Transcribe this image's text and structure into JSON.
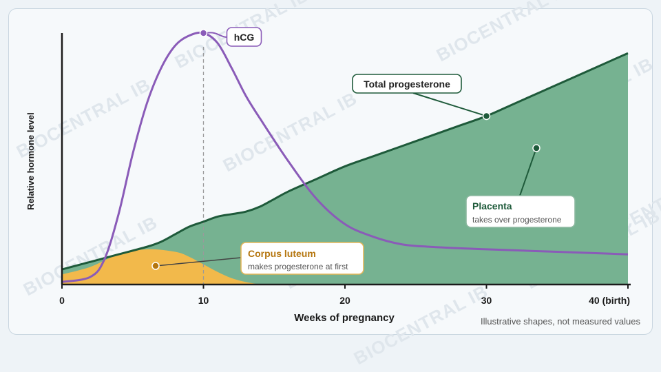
{
  "watermark": "BIOCENTRAL IB",
  "note": "Illustrative shapes, not measured values",
  "colors": {
    "placenta": "#76b291",
    "total_line": "#1e5a3a",
    "corpus": "#f2b94b",
    "corpus_text": "#b5760f",
    "hcg": "#8a5bb8",
    "placenta_text": "#1e5a3a"
  },
  "chart_data": {
    "type": "area",
    "xlabel": "Weeks of pregnancy",
    "ylabel": "Relative hormone level",
    "xlim": [
      0,
      40
    ],
    "ylim": [
      0,
      100
    ],
    "x_ticks": [
      {
        "value": 0,
        "label": "0"
      },
      {
        "value": 10,
        "label": "10"
      },
      {
        "value": 20,
        "label": "20"
      },
      {
        "value": 30,
        "label": "30"
      },
      {
        "value": 40,
        "label": "40 (birth)"
      }
    ],
    "grid": false,
    "reference_line_x": 10,
    "series": [
      {
        "name": "Total progesterone",
        "kind": "area",
        "x": [
          0,
          2,
          4,
          6,
          7,
          8,
          9,
          10,
          11,
          12,
          13,
          14,
          15,
          16,
          18,
          20,
          22,
          24,
          26,
          28,
          30,
          32,
          34,
          36,
          38,
          40
        ],
        "y": [
          6,
          9,
          12,
          15,
          17,
          20,
          23,
          25,
          27,
          28,
          29,
          31,
          34,
          37,
          42,
          47,
          51,
          55,
          59,
          63,
          67,
          72,
          77,
          82,
          87,
          92
        ]
      },
      {
        "name": "Corpus luteum",
        "kind": "area",
        "x": [
          0,
          2,
          4,
          6,
          8,
          9,
          10,
          11,
          12,
          13,
          14
        ],
        "y": [
          4,
          7,
          12,
          14,
          13,
          11,
          8,
          5,
          2.5,
          1,
          0
        ]
      },
      {
        "name": "hCG",
        "kind": "line",
        "x": [
          0,
          2,
          3,
          4,
          5,
          6,
          7,
          8,
          9,
          10,
          11,
          12,
          13,
          14,
          16,
          18,
          20,
          22,
          24,
          26,
          30,
          35,
          40
        ],
        "y": [
          1,
          3,
          10,
          28,
          52,
          72,
          86,
          95,
          99,
          100,
          96,
          86,
          75,
          66,
          49,
          34,
          24,
          19,
          16,
          15,
          14,
          13,
          12
        ]
      }
    ],
    "annotations": [
      {
        "id": "hcg",
        "title": "hCG",
        "subtitle": ""
      },
      {
        "id": "total",
        "title": "Total progesterone",
        "subtitle": ""
      },
      {
        "id": "placenta",
        "title": "Placenta",
        "subtitle": "takes over progesterone"
      },
      {
        "id": "corpus",
        "title": "Corpus luteum",
        "subtitle": "makes progesterone at first"
      }
    ]
  }
}
